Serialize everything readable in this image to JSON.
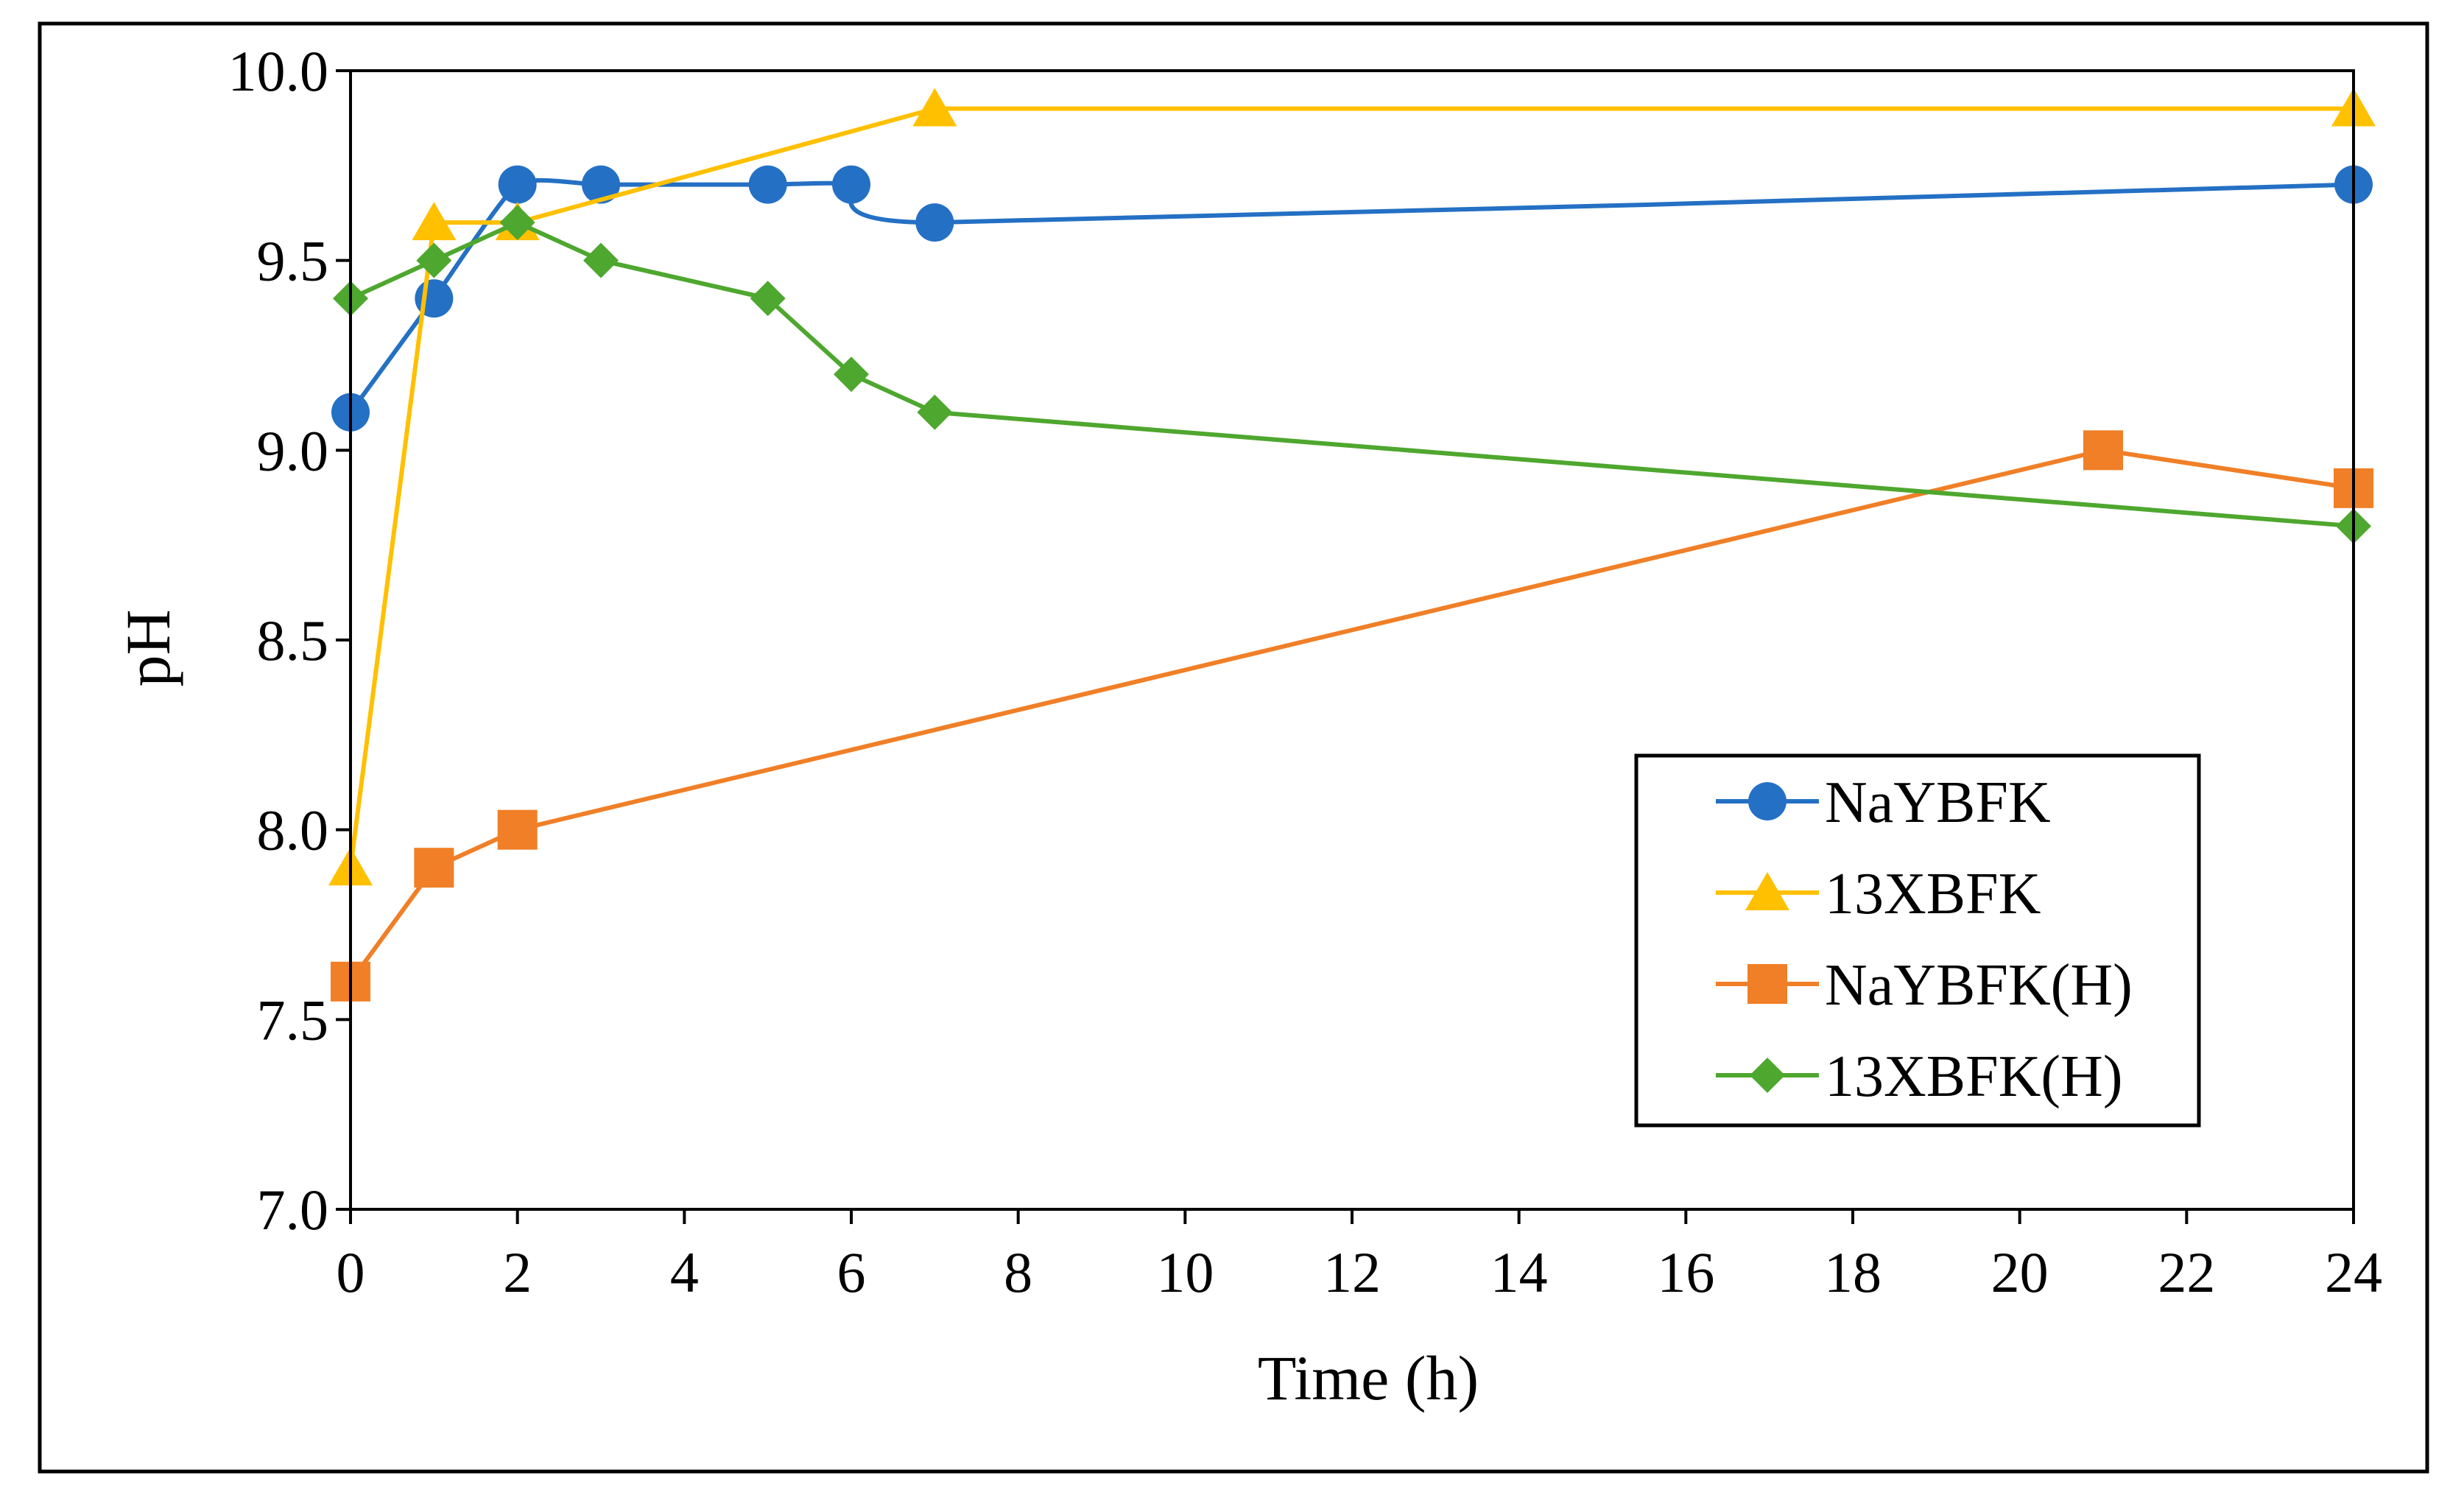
{
  "chart_data": {
    "type": "line",
    "xlabel": "Time (h)",
    "ylabel": "pH",
    "xlim": [
      0,
      24
    ],
    "ylim": [
      7.0,
      10.0
    ],
    "xticks": [
      0,
      2,
      4,
      6,
      8,
      10,
      12,
      14,
      16,
      18,
      20,
      22,
      24
    ],
    "xtick_labels": [
      "0",
      "2",
      "4",
      "6",
      "8",
      "10",
      "12",
      "14",
      "16",
      "18",
      "20",
      "22",
      "24"
    ],
    "yticks": [
      7.0,
      7.5,
      8.0,
      8.5,
      9.0,
      9.5,
      10.0
    ],
    "ytick_labels": [
      "7.0",
      "7.5",
      "8.0",
      "8.5",
      "9.0",
      "9.5",
      "10.0"
    ],
    "grid": false,
    "legend_position": "bottom-right",
    "series": [
      {
        "name": "NaYBFK",
        "color": "#2470C4",
        "marker": "circle",
        "smooth": true,
        "x": [
          0,
          1,
          2,
          3,
          5,
          6,
          7,
          24
        ],
        "y": [
          9.1,
          9.4,
          9.7,
          9.7,
          9.7,
          9.7,
          9.6,
          9.7
        ]
      },
      {
        "name": "13XBFK",
        "color": "#FFC000",
        "marker": "triangle",
        "smooth": false,
        "x": [
          0,
          1,
          2,
          7,
          24
        ],
        "y": [
          7.9,
          9.6,
          9.6,
          9.9,
          9.9
        ]
      },
      {
        "name": "NaYBFK(H)",
        "color": "#F07F27",
        "marker": "square",
        "smooth": false,
        "x": [
          0,
          1,
          2,
          21,
          24
        ],
        "y": [
          7.6,
          7.9,
          8.0,
          9.0,
          8.9
        ]
      },
      {
        "name": "13XBFK(H)",
        "color": "#4EA72E",
        "marker": "diamond",
        "smooth": false,
        "x": [
          0,
          1,
          2,
          3,
          5,
          6,
          7,
          24
        ],
        "y": [
          9.4,
          9.5,
          9.6,
          9.5,
          9.4,
          9.2,
          9.1,
          8.8
        ]
      }
    ]
  }
}
